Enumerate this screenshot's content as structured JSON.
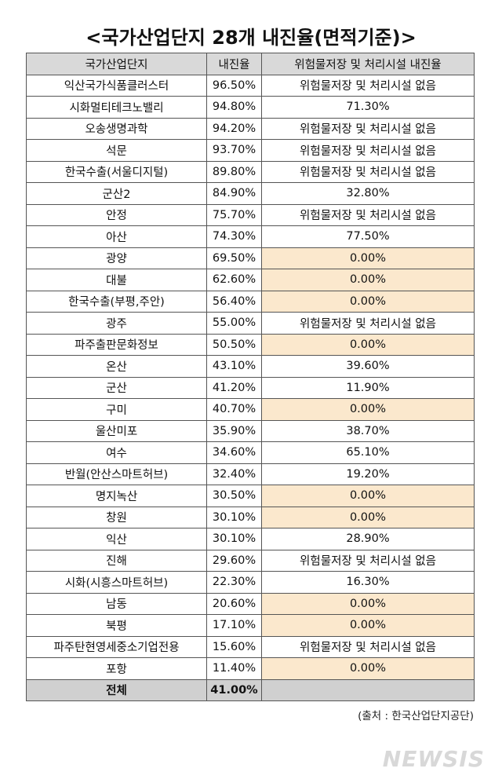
{
  "title": "<국가산업단지 28개 내진율(면적기준)>",
  "table": {
    "header": [
      "국가산업단지",
      "내진율",
      "위험물저장 및 처리시설 내진율"
    ],
    "rows": [
      [
        "익산국가식품클러스터",
        "96.50%",
        "위험물저장 및 처리시설 없음"
      ],
      [
        "시화멀티테크노밸리",
        "94.80%",
        "71.30%"
      ],
      [
        "오송생명과학",
        "94.20%",
        "위험물저장 및 처리시설 없음"
      ],
      [
        "석문",
        "93.70%",
        "위험물저장 및 처리시설 없음"
      ],
      [
        "한국수출(서울디지털)",
        "89.80%",
        "위험물저장 및 처리시설 없음"
      ],
      [
        "군산2",
        "84.90%",
        "32.80%"
      ],
      [
        "안정",
        "75.70%",
        "위험물저장 및 처리시설 없음"
      ],
      [
        "아산",
        "74.30%",
        "77.50%"
      ],
      [
        "광양",
        "69.50%",
        "0.00%"
      ],
      [
        "대불",
        "62.60%",
        "0.00%"
      ],
      [
        "한국수출(부평,주안)",
        "56.40%",
        "0.00%"
      ],
      [
        "광주",
        "55.00%",
        "위험물저장 및 처리시설 없음"
      ],
      [
        "파주출판문화정보",
        "50.50%",
        "0.00%"
      ],
      [
        "온산",
        "43.10%",
        "39.60%"
      ],
      [
        "군산",
        "41.20%",
        "11.90%"
      ],
      [
        "구미",
        "40.70%",
        "0.00%"
      ],
      [
        "울산미포",
        "35.90%",
        "38.70%"
      ],
      [
        "여수",
        "34.60%",
        "65.10%"
      ],
      [
        "반월(안산스마트허브)",
        "32.40%",
        "19.20%"
      ],
      [
        "명지녹산",
        "30.50%",
        "0.00%"
      ],
      [
        "창원",
        "30.10%",
        "0.00%"
      ],
      [
        "익산",
        "30.10%",
        "28.90%"
      ],
      [
        "진해",
        "29.60%",
        "위험물저장 및 처리시설 없음"
      ],
      [
        "시화(시흥스마트허브)",
        "22.30%",
        "16.30%"
      ],
      [
        "남동",
        "20.60%",
        "0.00%"
      ],
      [
        "북평",
        "17.10%",
        "0.00%"
      ],
      [
        "파주탄현영세중소기업전용",
        "15.60%",
        "위험물저장 및 처리시설 없음"
      ],
      [
        "포항",
        "11.40%",
        "0.00%"
      ]
    ],
    "total": [
      "전체",
      "41.00%",
      ""
    ]
  },
  "source": "(출처 : 한국산업단지공단)",
  "watermark": "NEWSIS"
}
